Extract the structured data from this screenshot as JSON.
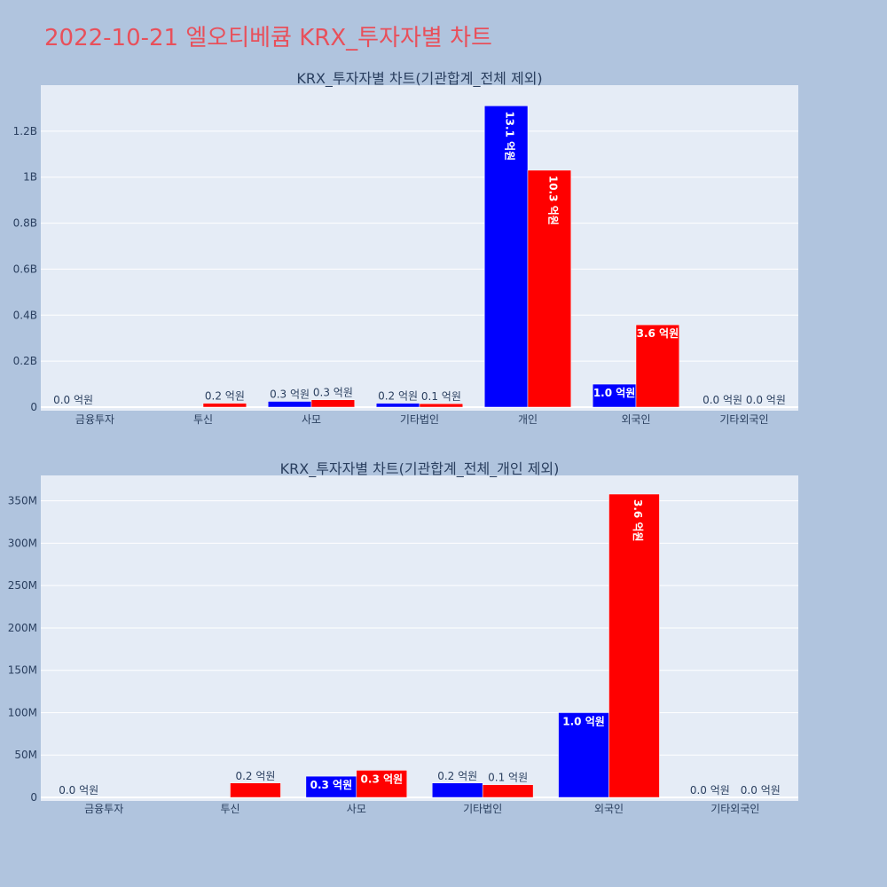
{
  "main_title": "2022-10-21 엘오티베큠 KRX_투자자별 차트",
  "colors": {
    "buy": "#0000ff",
    "sell": "#ff0000",
    "plot_bg": "#e5ecf6",
    "page_bg": "#b0c4de",
    "title": "#e8505b"
  },
  "chart_data": [
    {
      "type": "bar",
      "title": "KRX_투자자별 차트(기관합계_전체 제외)",
      "categories": [
        "금융투자",
        "투신",
        "사모",
        "기타법인",
        "개인",
        "외국인",
        "기타외국인"
      ],
      "ylim": [
        0,
        1400000000
      ],
      "yticks": [
        0,
        200000000,
        400000000,
        600000000,
        800000000,
        1000000000,
        1200000000
      ],
      "ytick_labels": [
        "0",
        "0.2B",
        "0.4B",
        "0.6B",
        "0.8B",
        "1B",
        "1.2B"
      ],
      "grid": true,
      "series": [
        {
          "color": "#0000ff",
          "values": [
            0,
            0,
            25000000,
            17000000,
            1310000000,
            100000000,
            0
          ],
          "labels": [
            "0.0 억원",
            "",
            "0.3 억원",
            "0.2 억원",
            "13.1 억원",
            "1.0 억원",
            "0.0 억원"
          ]
        },
        {
          "color": "#ff0000",
          "values": [
            0,
            17000000,
            32000000,
            15000000,
            1030000000,
            358000000,
            0
          ],
          "labels": [
            "",
            "0.2 억원",
            "0.3 억원",
            "0.1 억원",
            "10.3 억원",
            "3.6 억원",
            "0.0 억원"
          ]
        }
      ]
    },
    {
      "type": "bar",
      "title": "KRX_투자자별 차트(기관합계_전체_개인 제외)",
      "categories": [
        "금융투자",
        "투신",
        "사모",
        "기타법인",
        "외국인",
        "기타외국인"
      ],
      "ylim": [
        0,
        380000000
      ],
      "yticks": [
        0,
        50000000,
        100000000,
        150000000,
        200000000,
        250000000,
        300000000,
        350000000
      ],
      "ytick_labels": [
        "0",
        "50M",
        "100M",
        "150M",
        "200M",
        "250M",
        "300M",
        "350M"
      ],
      "grid": true,
      "series": [
        {
          "color": "#0000ff",
          "values": [
            0,
            0,
            25000000,
            17000000,
            100000000,
            0
          ],
          "labels": [
            "0.0 억원",
            "",
            "0.3 억원",
            "0.2 억원",
            "1.0 억원",
            "0.0 억원"
          ]
        },
        {
          "color": "#ff0000",
          "values": [
            0,
            17000000,
            32000000,
            15000000,
            358000000,
            0
          ],
          "labels": [
            "",
            "0.2 억원",
            "0.3 억원",
            "0.1 억원",
            "3.6 억원",
            "0.0 억원"
          ]
        }
      ]
    }
  ]
}
